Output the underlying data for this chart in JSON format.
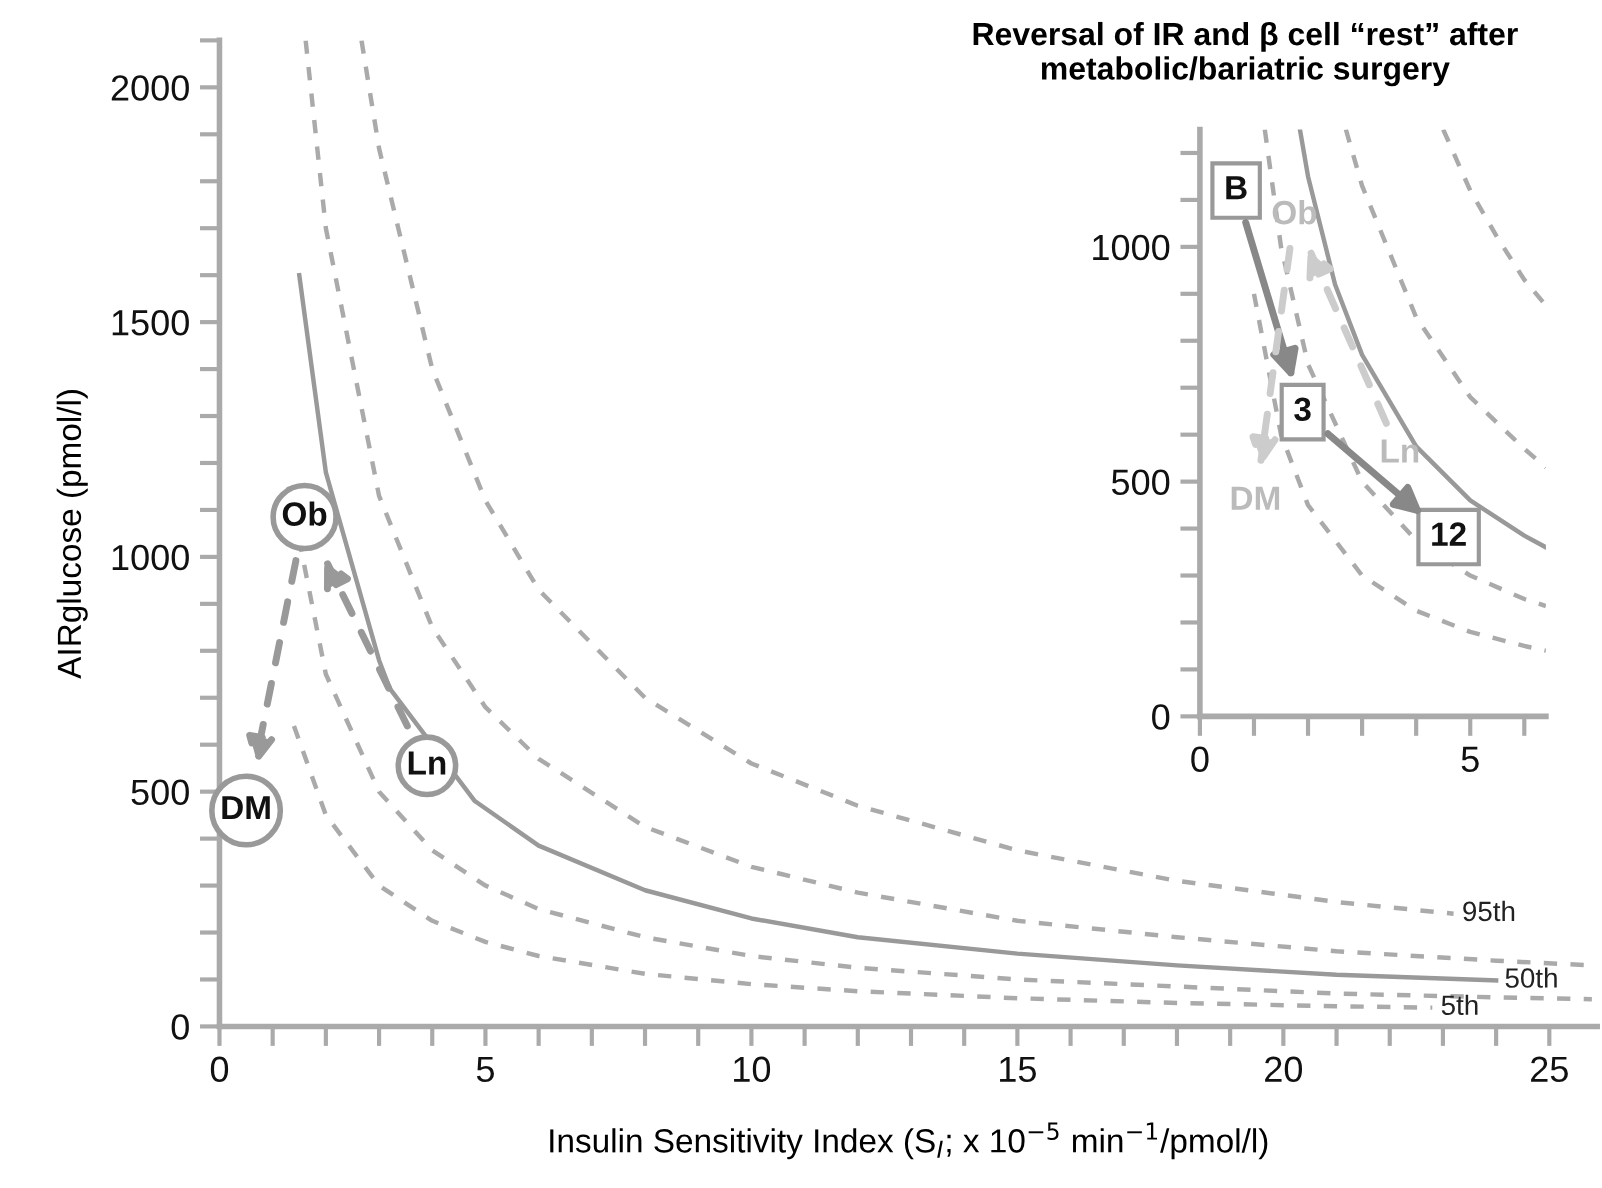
{
  "chart_data": [
    {
      "type": "line",
      "xlabel": "Insulin Sensitivity Index (S$_{I}$; x 10$^{−5}$ min$^{−1}$/pmol/l)",
      "ylabel": "AIRglucose (pmol/l)",
      "xlim": [
        0,
        25.9
      ],
      "ylim": [
        0,
        2100
      ],
      "xticks": [
        0,
        {
          "value": 1,
          "label": null
        },
        {
          "value": 2,
          "label": null
        },
        {
          "value": 3,
          "label": null
        },
        {
          "value": 4,
          "label": null
        },
        5,
        {
          "value": 6,
          "label": null
        },
        {
          "value": 7,
          "label": null
        },
        {
          "value": 8,
          "label": null
        },
        {
          "value": 9,
          "label": null
        },
        10,
        {
          "value": 11,
          "label": null
        },
        {
          "value": 12,
          "label": null
        },
        {
          "value": 13,
          "label": null
        },
        {
          "value": 14,
          "label": null
        },
        15,
        {
          "value": 16,
          "label": null
        },
        {
          "value": 17,
          "label": null
        },
        {
          "value": 18,
          "label": null
        },
        {
          "value": 19,
          "label": null
        },
        20,
        {
          "value": 21,
          "label": null
        },
        {
          "value": 22,
          "label": null
        },
        {
          "value": 23,
          "label": null
        },
        {
          "value": 24,
          "label": null
        },
        25
      ],
      "yticks": [
        0,
        {
          "value": 100,
          "label": null
        },
        {
          "value": 200,
          "label": null
        },
        {
          "value": 300,
          "label": null
        },
        {
          "value": 400,
          "label": null
        },
        500,
        {
          "value": 600,
          "label": null
        },
        {
          "value": 700,
          "label": null
        },
        {
          "value": 800,
          "label": null
        },
        {
          "value": 900,
          "label": null
        },
        1000,
        {
          "value": 1100,
          "label": null
        },
        {
          "value": 1200,
          "label": null
        },
        {
          "value": 1300,
          "label": null
        },
        {
          "value": 1400,
          "label": null
        },
        1500,
        {
          "value": 1600,
          "label": null
        },
        {
          "value": 1700,
          "label": null
        },
        {
          "value": 1800,
          "label": null
        },
        {
          "value": 1900,
          "label": null
        },
        2000,
        {
          "value": 2100,
          "label": null
        }
      ],
      "grid": false,
      "legend": false,
      "marker": "none",
      "series": [
        {
          "name": "95th",
          "color": "#aaaaaa",
          "line_style": "dashed",
          "x": [
            2.67,
            3,
            4,
            5,
            6,
            8,
            10,
            12,
            15,
            18,
            21,
            23.2
          ],
          "values": [
            2100,
            1870,
            1400,
            1120,
            930,
            700,
            560,
            470,
            375,
            310,
            265,
            240
          ]
        },
        {
          "color": "#aaaaaa",
          "line_style": "dashed",
          "x": [
            1.62,
            2,
            3,
            4,
            5,
            6,
            8,
            10,
            12,
            15,
            18,
            21,
            24,
            25.8
          ],
          "values": [
            2100,
            1700,
            1130,
            850,
            680,
            570,
            425,
            340,
            285,
            225,
            190,
            160,
            140,
            130
          ]
        },
        {
          "name": "50th",
          "color": "#999999",
          "line_style": "solid",
          "x": [
            1.5,
            2,
            3,
            3.2,
            4.8,
            6,
            8,
            10,
            12,
            15,
            18,
            21,
            24
          ],
          "values": [
            1600,
            1180,
            780,
            720,
            480,
            385,
            290,
            230,
            190,
            155,
            130,
            110,
            98
          ]
        },
        {
          "color": "#aaaaaa",
          "line_style": "dashed",
          "x": [
            1.3,
            2,
            3,
            4,
            5,
            6,
            8,
            10,
            12,
            15,
            18,
            21,
            24,
            25.8
          ],
          "values": [
            1150,
            750,
            500,
            375,
            300,
            250,
            190,
            150,
            125,
            100,
            85,
            70,
            62,
            58
          ]
        },
        {
          "name": "5th",
          "color": "#aaaaaa",
          "line_style": "dashed",
          "x": [
            1.4,
            2,
            3,
            4,
            5,
            6,
            8,
            10,
            12,
            15,
            18,
            21,
            22.8
          ],
          "values": [
            640,
            450,
            300,
            225,
            180,
            150,
            112,
            90,
            75,
            60,
            50,
            43,
            40
          ]
        }
      ],
      "annotations": [
        {
          "text": "DM",
          "x": 0.5,
          "y": 460
        },
        {
          "text": "Ob",
          "x": 1.6,
          "y": 1085
        },
        {
          "text": "Ln",
          "x": 3.9,
          "y": 555
        }
      ]
    },
    {
      "type": "line",
      "title": "Reversal of IR and β cell “rest” after\nmetabolic/bariatric surgery",
      "xlim": [
        0,
        6.4
      ],
      "ylim": [
        0,
        1250
      ],
      "xticks": [
        0,
        {
          "value": 1,
          "label": null
        },
        {
          "value": 2,
          "label": null
        },
        {
          "value": 3,
          "label": null
        },
        {
          "value": 4,
          "label": null
        },
        5,
        {
          "value": 6,
          "label": null
        }
      ],
      "yticks": [
        0,
        {
          "value": 100,
          "label": null
        },
        {
          "value": 200,
          "label": null
        },
        {
          "value": 300,
          "label": null
        },
        {
          "value": 400,
          "label": null
        },
        500,
        {
          "value": 600,
          "label": null
        },
        {
          "value": 700,
          "label": null
        },
        {
          "value": 800,
          "label": null
        },
        {
          "value": 900,
          "label": null
        },
        1000,
        {
          "value": 1100,
          "label": null
        },
        {
          "value": 1200,
          "label": null
        }
      ],
      "grid": false,
      "legend": false,
      "marker": "none",
      "series": [
        {
          "color": "#aaaaaa",
          "line_style": "dashed",
          "x": [
            4.5,
            5,
            5.5,
            6,
            6.4
          ],
          "values": [
            1250,
            1120,
            1020,
            930,
            875
          ]
        },
        {
          "color": "#aaaaaa",
          "line_style": "dashed",
          "x": [
            2.7,
            3,
            4,
            5,
            6,
            6.4
          ],
          "values": [
            1250,
            1130,
            850,
            680,
            570,
            530
          ]
        },
        {
          "color": "#999999",
          "line_style": "solid",
          "x": [
            1.85,
            2,
            2.5,
            3,
            4,
            5,
            6,
            6.4
          ],
          "values": [
            1250,
            1150,
            920,
            770,
            575,
            460,
            385,
            360
          ]
        },
        {
          "color": "#aaaaaa",
          "line_style": "dashed",
          "x": [
            1.2,
            1.5,
            2,
            3,
            4,
            5,
            6,
            6.4
          ],
          "values": [
            1250,
            1000,
            750,
            500,
            375,
            300,
            250,
            235
          ]
        },
        {
          "color": "#aaaaaa",
          "line_style": "dashed",
          "x": [
            1.0,
            1.5,
            2,
            3,
            4,
            5,
            6,
            6.4
          ],
          "values": [
            900,
            600,
            450,
            300,
            225,
            180,
            150,
            140
          ]
        }
      ],
      "annotations": [
        {
          "text": "B",
          "x": 0.67,
          "y": 1120
        },
        {
          "text": "3",
          "x": 1.9,
          "y": 648
        },
        {
          "text": "12",
          "x": 4.6,
          "y": 382
        },
        "Ob",
        "Ln",
        "DM"
      ]
    }
  ]
}
